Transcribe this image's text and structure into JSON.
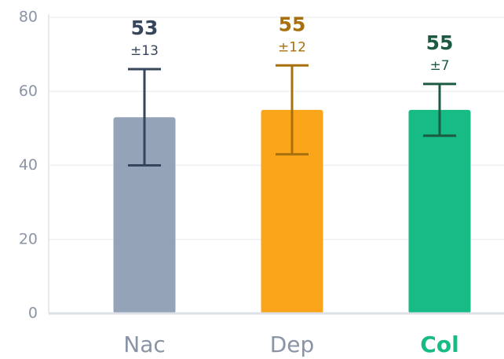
{
  "chart_data": {
    "type": "bar",
    "categories": [
      "Nac",
      "Dep",
      "Col"
    ],
    "values": [
      53,
      55,
      55
    ],
    "errors": [
      13,
      12,
      7
    ],
    "error_labels": [
      "±13",
      "±12",
      "±7"
    ],
    "colors": [
      "#94a3b8",
      "#fba61a",
      "#16bb85"
    ],
    "error_colors": [
      "#36465c",
      "#a8700c",
      "#1d5a42"
    ],
    "highlight_index": 2,
    "ylim": [
      0,
      80
    ],
    "yticks": [
      0,
      20,
      40,
      60,
      80
    ],
    "grid": true
  }
}
